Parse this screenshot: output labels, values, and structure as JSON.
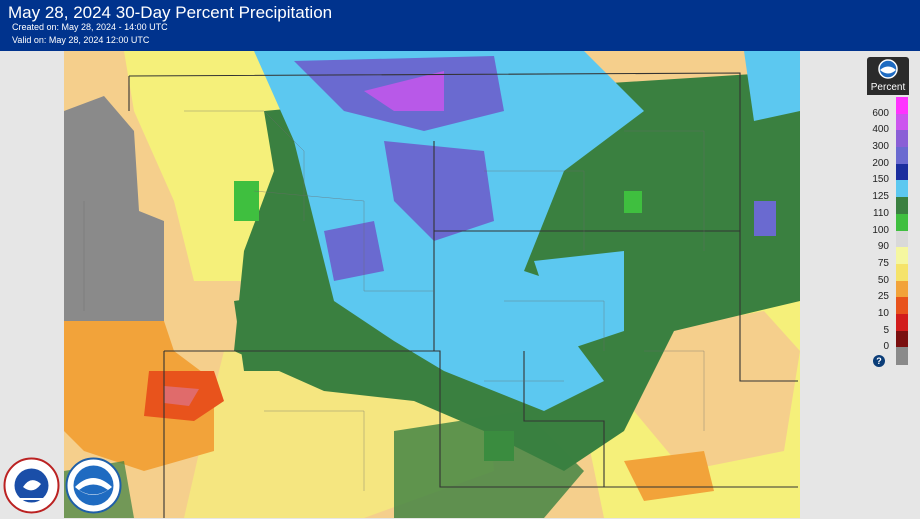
{
  "header": {
    "title": "May 28, 2024 30-Day Percent Precipitation",
    "created": "Created on: May 28, 2024 - 14:00 UTC",
    "valid": "Valid on: May 28, 2024 12:00 UTC"
  },
  "legend": {
    "title": "Percent",
    "help": "?",
    "items": [
      {
        "label": "600",
        "color": "#ff33ff"
      },
      {
        "label": "400",
        "color": "#cc55ee"
      },
      {
        "label": "300",
        "color": "#8a5fd6"
      },
      {
        "label": "200",
        "color": "#6a6ad0"
      },
      {
        "label": "150",
        "color": "#1b2e9e"
      },
      {
        "label": "125",
        "color": "#5cc8f0"
      },
      {
        "label": "110",
        "color": "#3a8040"
      },
      {
        "label": "100",
        "color": "#3fbf3f"
      },
      {
        "label": "90",
        "color": "#d9d9d9"
      },
      {
        "label": "75",
        "color": "#f5f7a0"
      },
      {
        "label": "50",
        "color": "#f5e36a"
      },
      {
        "label": "25",
        "color": "#f2a33a"
      },
      {
        "label": "10",
        "color": "#e8531c"
      },
      {
        "label": "5",
        "color": "#d21c1c"
      },
      {
        "label": "0",
        "color": "#7a0f0f"
      },
      {
        "label": "",
        "color": "#8a8a8a"
      }
    ]
  },
  "logos": {
    "nws": "NATIONAL WEATHER SERVICE",
    "noaa": "NOAA"
  }
}
